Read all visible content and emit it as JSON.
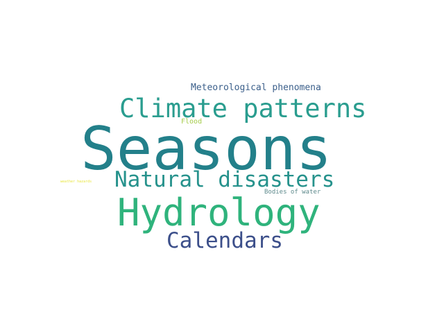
{
  "words": [
    {
      "text": "Meteorological phenomena",
      "color": "#3b5f8a"
    },
    {
      "text": "Climate patterns",
      "color": "#2a9d8f"
    },
    {
      "text": "Flood",
      "color": "#a5cc4a"
    },
    {
      "text": "Seasons",
      "color": "#23808a"
    },
    {
      "text": "Natural disasters",
      "color": "#26928c"
    },
    {
      "text": "weather hazards",
      "color": "#e8e640"
    },
    {
      "text": "Bodies of water",
      "color": "#5e8a8c"
    },
    {
      "text": "Hydrology",
      "color": "#2fb37c"
    },
    {
      "text": "Calendars",
      "color": "#3c4f8a"
    }
  ]
}
